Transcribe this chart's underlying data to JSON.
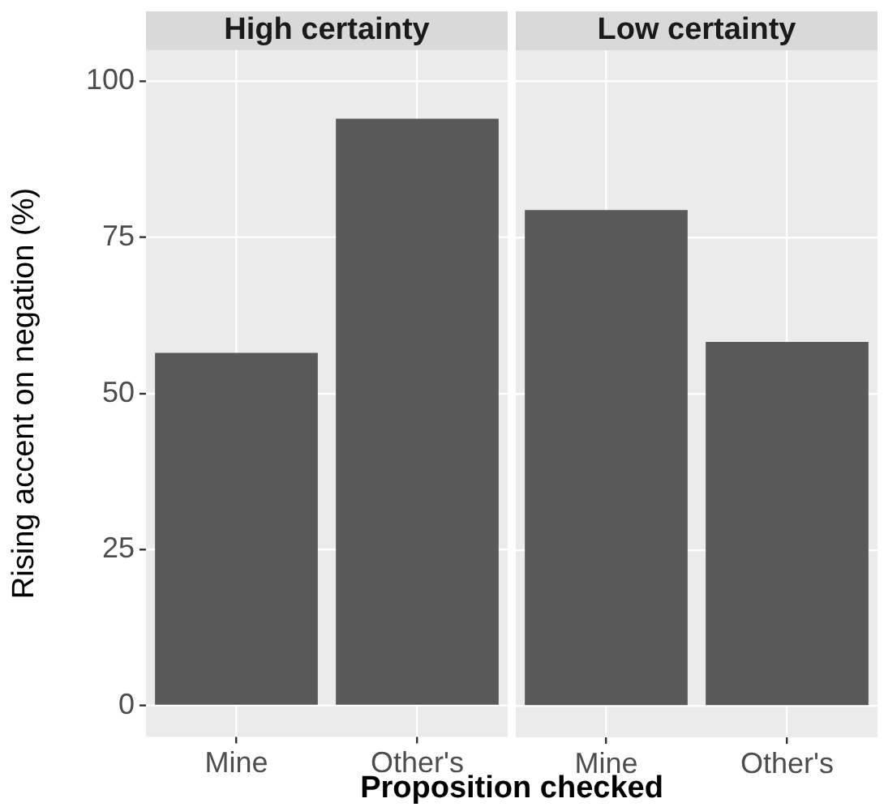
{
  "chart_data": [
    {
      "type": "bar",
      "title": "High certainty",
      "xlabel": "Proposition checked",
      "ylabel": "Rising accent on negation (%)",
      "categories": [
        "Mine",
        "Other's"
      ],
      "values": [
        56.5,
        94
      ],
      "color": "#595959",
      "ylim": [
        -5,
        105
      ],
      "yticks": [
        0,
        25,
        50,
        75,
        100
      ],
      "grid": true
    },
    {
      "type": "bar",
      "title": "Low certainty",
      "categories": [
        "Mine",
        "Other's"
      ],
      "values": [
        79.4,
        58.3
      ],
      "color": "#595959",
      "ylim": [
        -5,
        105
      ],
      "yticks": [
        0,
        25,
        50,
        75,
        100
      ],
      "grid": true,
      "tick_labels": "x"
    }
  ]
}
